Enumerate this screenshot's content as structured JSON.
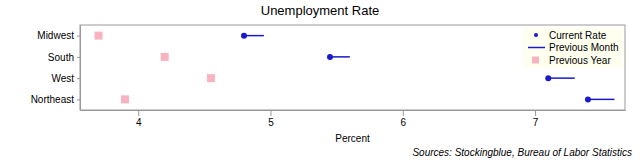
{
  "chart_data": {
    "type": "dot",
    "title": "Unemployment Rate",
    "categories": [
      "Midwest",
      "South",
      "West",
      "Northeast"
    ],
    "series": [
      {
        "name": "Current Rate",
        "color": "#1a1acc",
        "marker": "circle",
        "values": [
          4.8,
          5.45,
          7.1,
          7.4
        ]
      },
      {
        "name": "Previous Month",
        "color": "#1a1acc",
        "line_style": "solid",
        "values": [
          4.95,
          5.6,
          7.3,
          7.6
        ]
      },
      {
        "name": "Previous Year",
        "color": "#f7b3c0",
        "marker": "square",
        "values": [
          3.7,
          4.2,
          4.55,
          3.9
        ]
      }
    ],
    "xlim": [
      3.56,
      7.68
    ],
    "xticks": [
      4,
      5,
      6,
      7
    ],
    "xlabel": "Percent",
    "legend": "top-right",
    "grid": false,
    "annotations": [
      "Sources: Stockingblue, Bureau of Labor Statistics"
    ]
  }
}
